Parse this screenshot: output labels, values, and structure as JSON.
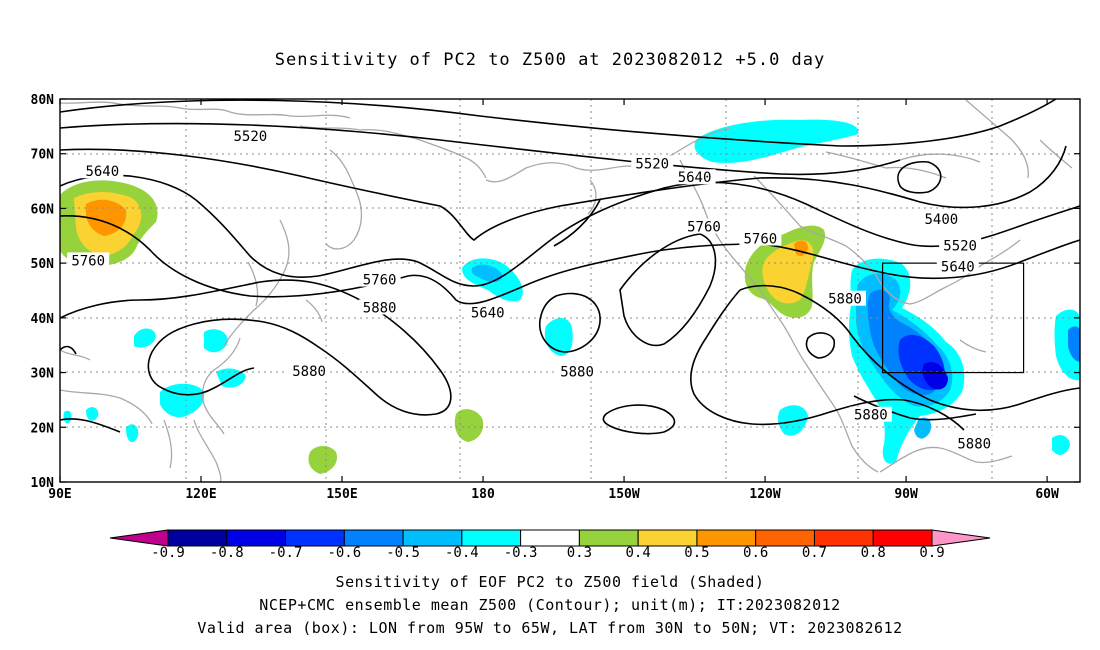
{
  "title": "Sensitivity of PC2 to Z500 at 2023082012 +5.0 day",
  "map": {
    "lon_min": 90,
    "lon_max": 307,
    "lat_min": 10,
    "lat_max": 80,
    "lat_labels": [
      "80N",
      "70N",
      "60N",
      "50N",
      "40N",
      "30N",
      "20N",
      "10N"
    ],
    "lat_values": [
      80,
      70,
      60,
      50,
      40,
      30,
      20,
      10
    ],
    "lon_labels": [
      "90E",
      "120E",
      "150E",
      "180",
      "150W",
      "120W",
      "90W",
      "60W"
    ],
    "lon_values": [
      90,
      120,
      150,
      180,
      210,
      240,
      270,
      300
    ],
    "valid_box": {
      "lon_w": 265,
      "lon_e": 295,
      "lat_s": 30,
      "lat_n": 50
    },
    "contour_labels": [
      {
        "text": "5520",
        "lon": 130.5,
        "lat": 73.2
      },
      {
        "text": "5640",
        "lon": 99,
        "lat": 66.8
      },
      {
        "text": "5760",
        "lon": 96,
        "lat": 50.5
      },
      {
        "text": "5520",
        "lon": 216,
        "lat": 68.2
      },
      {
        "text": "5640",
        "lon": 225,
        "lat": 65.7
      },
      {
        "text": "5760",
        "lon": 158,
        "lat": 47.0
      },
      {
        "text": "5880",
        "lon": 158,
        "lat": 41.9
      },
      {
        "text": "5640",
        "lon": 181,
        "lat": 41.0
      },
      {
        "text": "5760",
        "lon": 227,
        "lat": 56.7
      },
      {
        "text": "5760",
        "lon": 239,
        "lat": 54.5
      },
      {
        "text": "5400",
        "lon": 277.5,
        "lat": 58.1
      },
      {
        "text": "5520",
        "lon": 281.5,
        "lat": 53.2
      },
      {
        "text": "5640",
        "lon": 281,
        "lat": 49.4
      },
      {
        "text": "5880",
        "lon": 257,
        "lat": 43.5
      },
      {
        "text": "5880",
        "lon": 200,
        "lat": 30.2
      },
      {
        "text": "5880",
        "lon": 143,
        "lat": 30.3
      },
      {
        "text": "5880",
        "lon": 262.5,
        "lat": 22.3
      },
      {
        "text": "5880",
        "lon": 284.5,
        "lat": 17.0
      }
    ]
  },
  "colorbar": {
    "labels": [
      "-0.9",
      "-0.8",
      "-0.7",
      "-0.6",
      "-0.5",
      "-0.4",
      "-0.3",
      "0.3",
      "0.4",
      "0.5",
      "0.6",
      "0.7",
      "0.8",
      "0.9"
    ],
    "colors": [
      "#c0008c",
      "#0000a0",
      "#0000e6",
      "#0032ff",
      "#0082ff",
      "#00beff",
      "#00ffff",
      "#ffffff",
      "#96d23c",
      "#fad232",
      "#ff9600",
      "#ff6400",
      "#ff3200",
      "#ff0000",
      "#ff96c8"
    ]
  },
  "captions": {
    "line1": "Sensitivity of EOF PC2 to Z500 field (Shaded)",
    "line2": "NCEP+CMC ensemble mean Z500 (Contour); unit(m); IT:2023082012",
    "line3": "Valid area (box): LON from 95W to 65W, LAT from 30N to 50N; VT: 2023082612"
  }
}
